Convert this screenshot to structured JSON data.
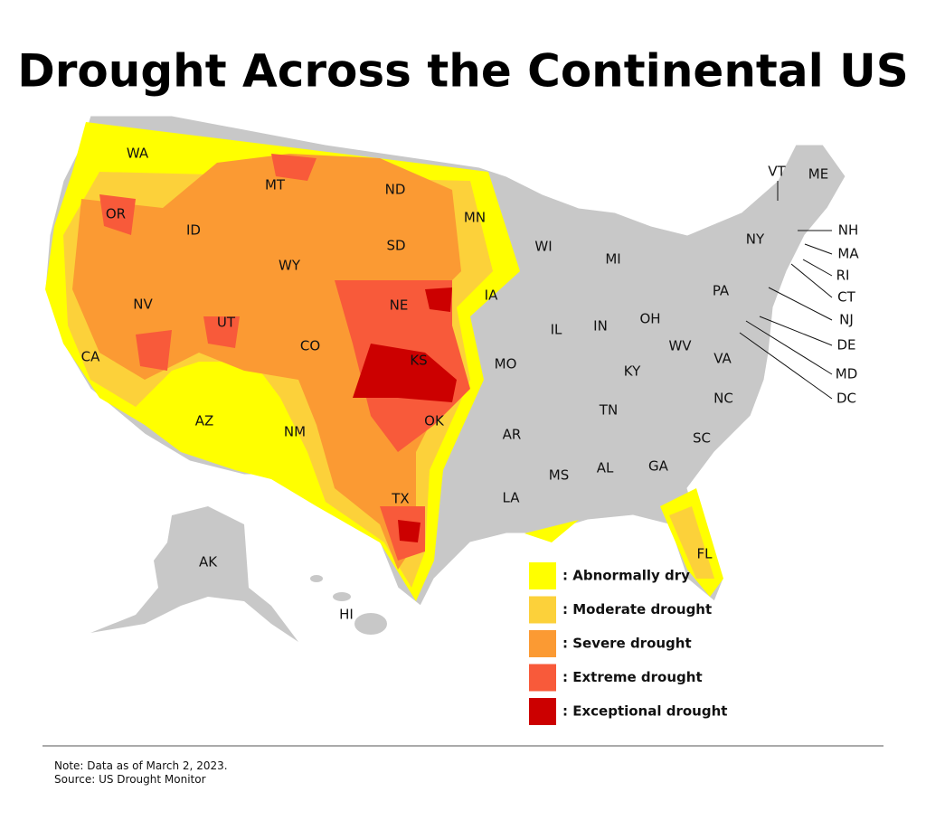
{
  "title": "Drought Across the Continental US",
  "states": [
    "WA",
    "OR",
    "CA",
    "NV",
    "ID",
    "MT",
    "WY",
    "UT",
    "AZ",
    "CO",
    "NM",
    "ND",
    "SD",
    "NE",
    "KS",
    "OK",
    "TX",
    "MN",
    "IA",
    "MO",
    "AR",
    "LA",
    "WI",
    "IL",
    "MI",
    "IN",
    "OH",
    "KY",
    "TN",
    "MS",
    "AL",
    "GA",
    "FL",
    "SC",
    "NC",
    "VA",
    "WV",
    "PA",
    "NY",
    "VT",
    "ME",
    "NH",
    "MA",
    "RI",
    "CT",
    "NJ",
    "DE",
    "MD",
    "DC",
    "AK",
    "HI"
  ],
  "legend": [
    {
      "label": ": Abnormally dry",
      "color": "#ffff00"
    },
    {
      "label": ": Moderate drought",
      "color": "#fcd13a"
    },
    {
      "label": ": Severe drought",
      "color": "#fb9a33"
    },
    {
      "label": ": Extreme drought",
      "color": "#f85a3a"
    },
    {
      "label": ": Exceptional drought",
      "color": "#cc0000"
    }
  ],
  "note": "Note: Data as of March 2, 2023.",
  "source": "Source: US Drought Monitor"
}
